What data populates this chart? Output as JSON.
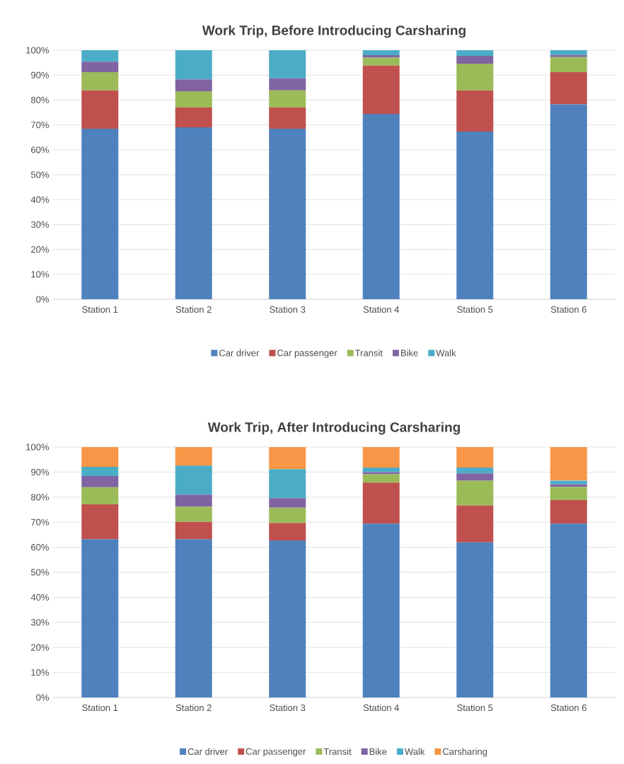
{
  "chart_data": [
    {
      "type": "bar",
      "stacked": true,
      "title": "Work Trip, Before Introducing Carsharing",
      "categories": [
        "Station 1",
        "Station 2",
        "Station 3",
        "Station 4",
        "Station 5",
        "Station 6"
      ],
      "series": [
        {
          "name": "Car driver",
          "color": "#4f81bd",
          "values": [
            68.5,
            69.0,
            68.5,
            74.4,
            67.3,
            78.3
          ]
        },
        {
          "name": "Car passenger",
          "color": "#c0504d",
          "values": [
            15.4,
            8.0,
            8.5,
            19.4,
            16.6,
            12.9
          ]
        },
        {
          "name": "Transit",
          "color": "#9bbb59",
          "values": [
            7.3,
            6.5,
            6.9,
            3.2,
            10.7,
            6.0
          ]
        },
        {
          "name": "Bike",
          "color": "#8064a2",
          "values": [
            4.2,
            4.8,
            4.8,
            1.0,
            3.1,
            0.9
          ]
        },
        {
          "name": "Walk",
          "color": "#4bacc6",
          "values": [
            4.6,
            11.7,
            11.3,
            2.0,
            2.3,
            1.9
          ]
        }
      ],
      "ylim": [
        0,
        100
      ],
      "yticks": [
        {
          "value": 0,
          "label": "0%"
        },
        {
          "value": 10,
          "label": "10%"
        },
        {
          "value": 20,
          "label": "20%"
        },
        {
          "value": 30,
          "label": "30%"
        },
        {
          "value": 40,
          "label": "40%"
        },
        {
          "value": 50,
          "label": "50%"
        },
        {
          "value": 60,
          "label": "60%"
        },
        {
          "value": 70,
          "label": "70%"
        },
        {
          "value": 80,
          "label": "80%"
        },
        {
          "value": 90,
          "label": "90%"
        },
        {
          "value": 100,
          "label": "100%"
        }
      ],
      "grid": "y",
      "legend": "bottom"
    },
    {
      "type": "bar",
      "stacked": true,
      "title": "Work Trip, After Introducing Carsharing",
      "categories": [
        "Station 1",
        "Station 2",
        "Station 3",
        "Station 4",
        "Station 5",
        "Station 6"
      ],
      "series": [
        {
          "name": "Car driver",
          "color": "#4f81bd",
          "values": [
            63.2,
            63.2,
            62.7,
            69.4,
            61.9,
            69.4
          ]
        },
        {
          "name": "Car passenger",
          "color": "#c0504d",
          "values": [
            13.9,
            6.9,
            7.0,
            16.4,
            14.8,
            9.4
          ]
        },
        {
          "name": "Transit",
          "color": "#9bbb59",
          "values": [
            6.9,
            6.1,
            6.1,
            3.3,
            9.9,
            5.3
          ]
        },
        {
          "name": "Bike",
          "color": "#8064a2",
          "values": [
            4.4,
            4.8,
            3.8,
            0.9,
            2.9,
            1.1
          ]
        },
        {
          "name": "Walk",
          "color": "#4bacc6",
          "values": [
            3.7,
            11.6,
            11.6,
            1.8,
            2.3,
            1.4
          ]
        },
        {
          "name": "Carsharing",
          "color": "#f79646",
          "values": [
            7.9,
            7.4,
            8.8,
            8.2,
            8.2,
            13.4
          ]
        }
      ],
      "ylim": [
        0,
        100
      ],
      "yticks": [
        {
          "value": 0,
          "label": "0%"
        },
        {
          "value": 10,
          "label": "10%"
        },
        {
          "value": 20,
          "label": "20%"
        },
        {
          "value": 30,
          "label": "30%"
        },
        {
          "value": 40,
          "label": "40%"
        },
        {
          "value": 50,
          "label": "50%"
        },
        {
          "value": 60,
          "label": "60%"
        },
        {
          "value": 70,
          "label": "70%"
        },
        {
          "value": 80,
          "label": "80%"
        },
        {
          "value": 90,
          "label": "90%"
        },
        {
          "value": 100,
          "label": "100%"
        }
      ],
      "grid": "y",
      "legend": "bottom"
    }
  ]
}
